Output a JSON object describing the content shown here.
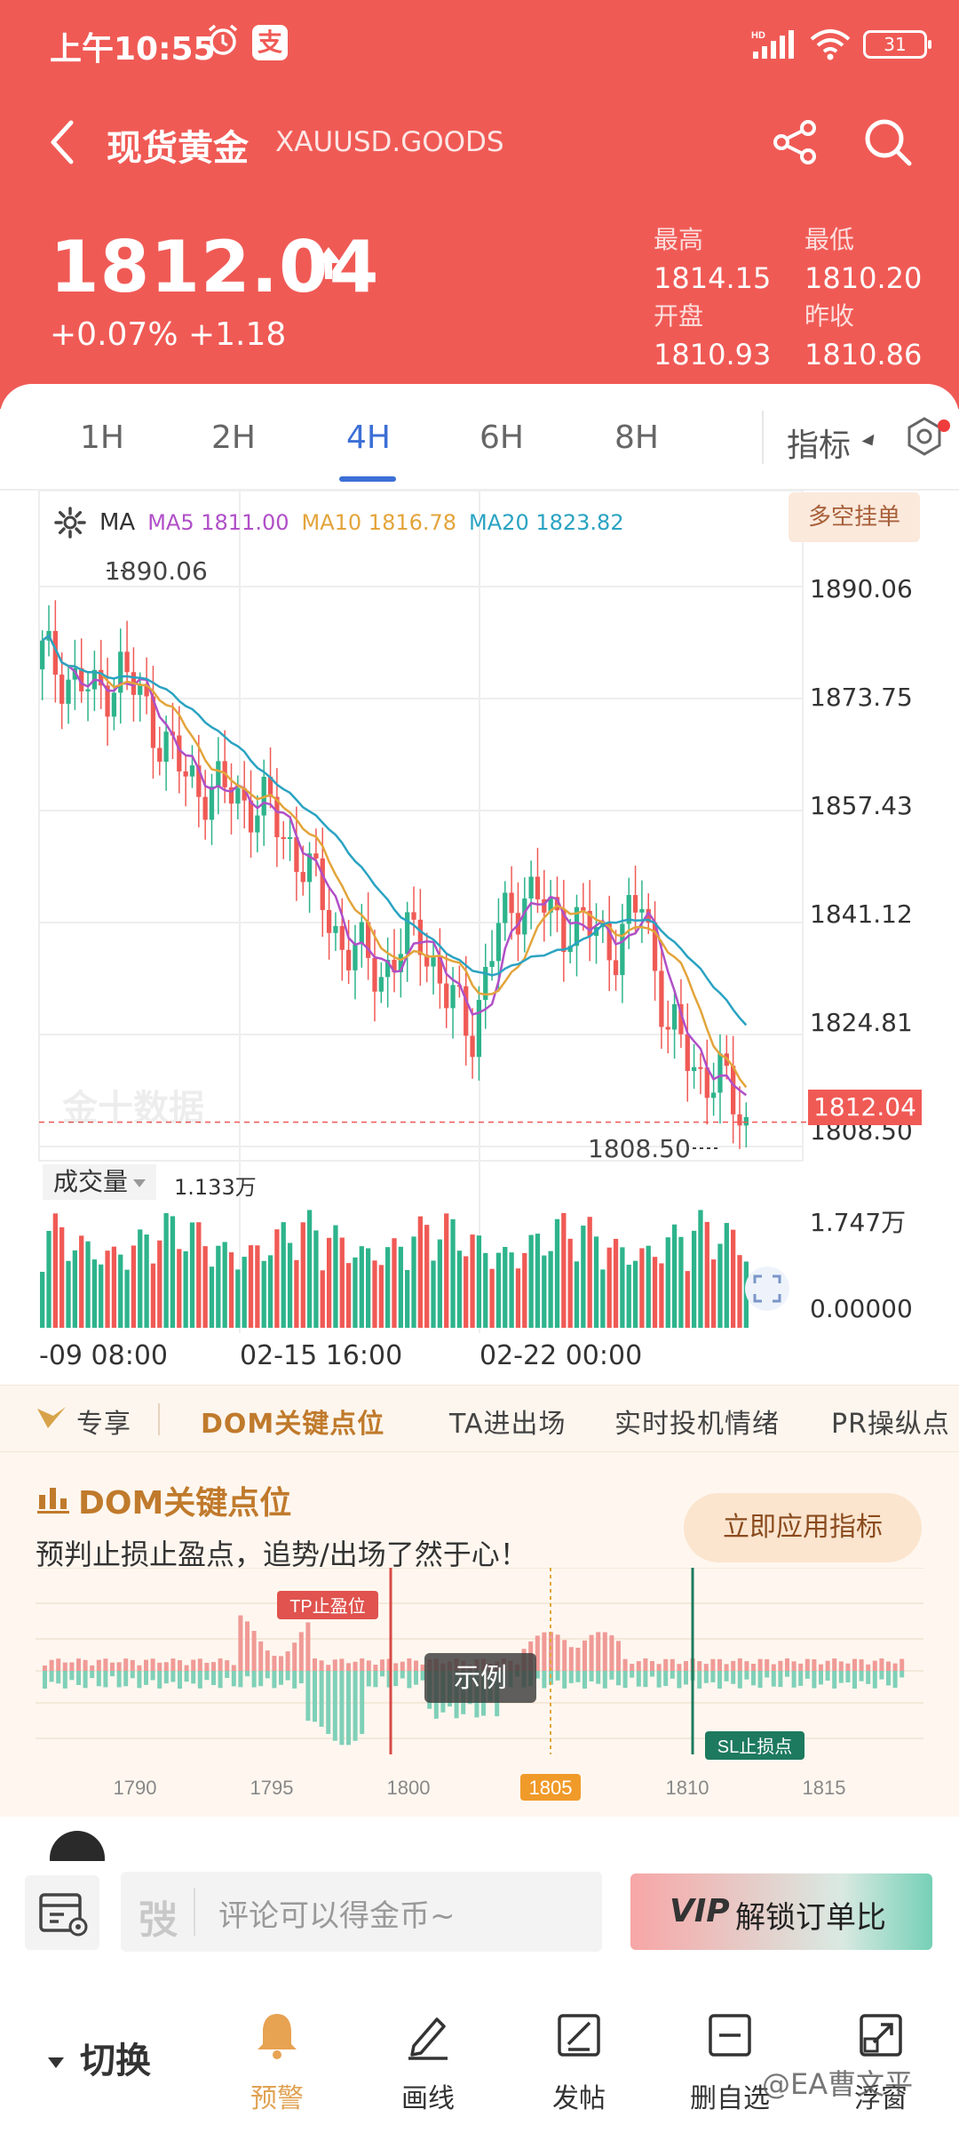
{
  "status": {
    "time": "上午10:55",
    "alipay": "支",
    "battery": "31"
  },
  "nav": {
    "title": "现货黄金",
    "subtitle": "XAUUSD.GOODS"
  },
  "quote": {
    "price": "1812.04",
    "change": "+0.07% +1.18",
    "stats": [
      {
        "label": "最高",
        "value": "1814.15"
      },
      {
        "label": "最低",
        "value": "1810.20"
      },
      {
        "label": "开盘",
        "value": "1810.93"
      },
      {
        "label": "昨收",
        "value": "1810.86"
      }
    ]
  },
  "timeframes": [
    "1H",
    "2H",
    "4H",
    "6H",
    "8H"
  ],
  "active_timeframe": "4H",
  "indicator_label": "指标",
  "ma_bar": {
    "label": "MA",
    "ma5": "MA5 1811.00",
    "ma10": "MA10 1816.78",
    "ma20": "MA20 1823.82"
  },
  "duokong_label": "多空挂单",
  "watermark": "金十数据",
  "chart_data": {
    "type": "candlestick",
    "y_ticks": [
      "1890.06",
      "1873.75",
      "1857.43",
      "1841.12",
      "1824.81",
      "1808.50"
    ],
    "ylim": [
      1808.5,
      1890.06
    ],
    "x_ticks": [
      "-09 08:00",
      "02-15 16:00",
      "02-22 00:00"
    ],
    "high_marker": "1890.06",
    "low_marker": "1808.50",
    "last_price": "1812.04",
    "ma_colors": {
      "ma5": "#b04fc7",
      "ma10": "#e3a43a",
      "ma20": "#2aa3c2"
    },
    "up_color": "#2eb48c",
    "down_color": "#f05a55",
    "series_summary": [
      {
        "name": "MA5",
        "end_value": 1811.0
      },
      {
        "name": "MA10",
        "end_value": 1816.78
      },
      {
        "name": "MA20",
        "end_value": 1823.82
      }
    ]
  },
  "volume": {
    "label": "成交量",
    "value": "1.133万",
    "y_ticks": [
      "1.747万",
      "0.00000"
    ]
  },
  "features": {
    "exclusive": "专享",
    "items": [
      "DOM关键点位",
      "TA进出场",
      "实时投机情绪",
      "PR操纵点"
    ]
  },
  "dom": {
    "title": "DOM关键点位",
    "desc": "预判止损止盈点，追势/出场了然于心！",
    "apply": "立即应用指标",
    "tp_label": "TP止盈位",
    "sl_label": "SL止损点",
    "example_label": "示例",
    "x_ticks": [
      "1790",
      "1795",
      "1800",
      "1805",
      "1810",
      "1815"
    ],
    "highlight_tick": "1805"
  },
  "comment": {
    "placeholder": "评论可以得金币~",
    "logo": "弢"
  },
  "vip": {
    "logo": "VIP",
    "label": "解锁订单比"
  },
  "bottom_nav": {
    "switch_label": "切换",
    "items": [
      {
        "label": "预警",
        "icon": "bell-icon"
      },
      {
        "label": "画线",
        "icon": "pen-icon"
      },
      {
        "label": "发帖",
        "icon": "post-icon"
      },
      {
        "label": "删自选",
        "icon": "minus-square-icon"
      },
      {
        "label": "浮窗",
        "icon": "float-window-icon"
      }
    ]
  },
  "bottom_watermark": "@EA曹文平"
}
